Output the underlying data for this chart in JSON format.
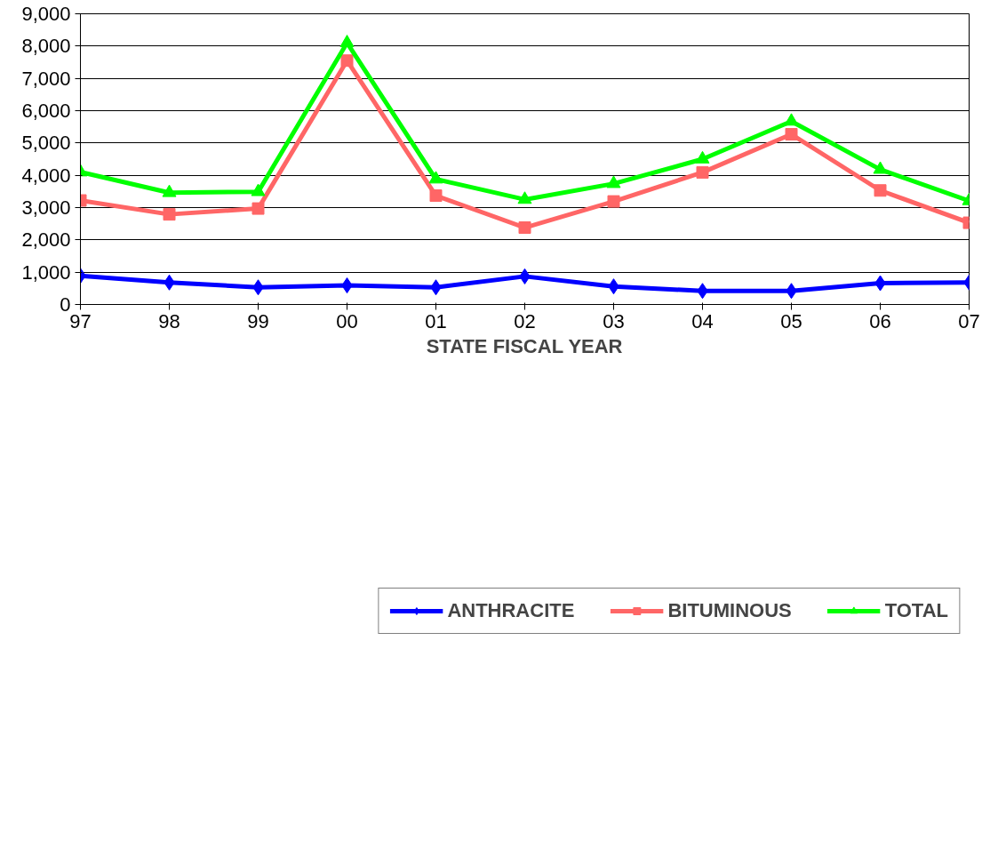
{
  "chart_data": {
    "type": "line",
    "xlabel": "STATE FISCAL YEAR",
    "categories": [
      "97",
      "98",
      "99",
      "00",
      "01",
      "02",
      "03",
      "04",
      "05",
      "06",
      "07"
    ],
    "series": [
      {
        "name": "ANTHRACITE",
        "color": "#0000ff",
        "marker": "diamond",
        "values": [
          890,
          680,
          530,
          590,
          530,
          870,
          560,
          420,
          420,
          660,
          680
        ]
      },
      {
        "name": "BITUMINOUS",
        "color": "#ff6666",
        "marker": "square",
        "values": [
          3220,
          2790,
          2970,
          7550,
          3370,
          2380,
          3190,
          4090,
          5270,
          3530,
          2530
        ]
      },
      {
        "name": "TOTAL",
        "color": "#00ff00",
        "marker": "triangle",
        "values": [
          4100,
          3460,
          3490,
          8100,
          3880,
          3250,
          3740,
          4500,
          5670,
          4180,
          3210
        ]
      }
    ],
    "ylim": [
      0,
      9000
    ],
    "yticks": [
      {
        "value": 0,
        "label": "0"
      },
      {
        "value": 1000,
        "label": "1,000"
      },
      {
        "value": 2000,
        "label": "2,000"
      },
      {
        "value": 3000,
        "label": "3,000"
      },
      {
        "value": 4000,
        "label": "4,000"
      },
      {
        "value": 5000,
        "label": "5,000"
      },
      {
        "value": 6000,
        "label": "6,000"
      },
      {
        "value": 7000,
        "label": "7,000"
      },
      {
        "value": 8000,
        "label": "8,000"
      },
      {
        "value": 9000,
        "label": "9,000"
      }
    ],
    "grid": "y",
    "legend": "bottom",
    "line_style": "solid"
  }
}
